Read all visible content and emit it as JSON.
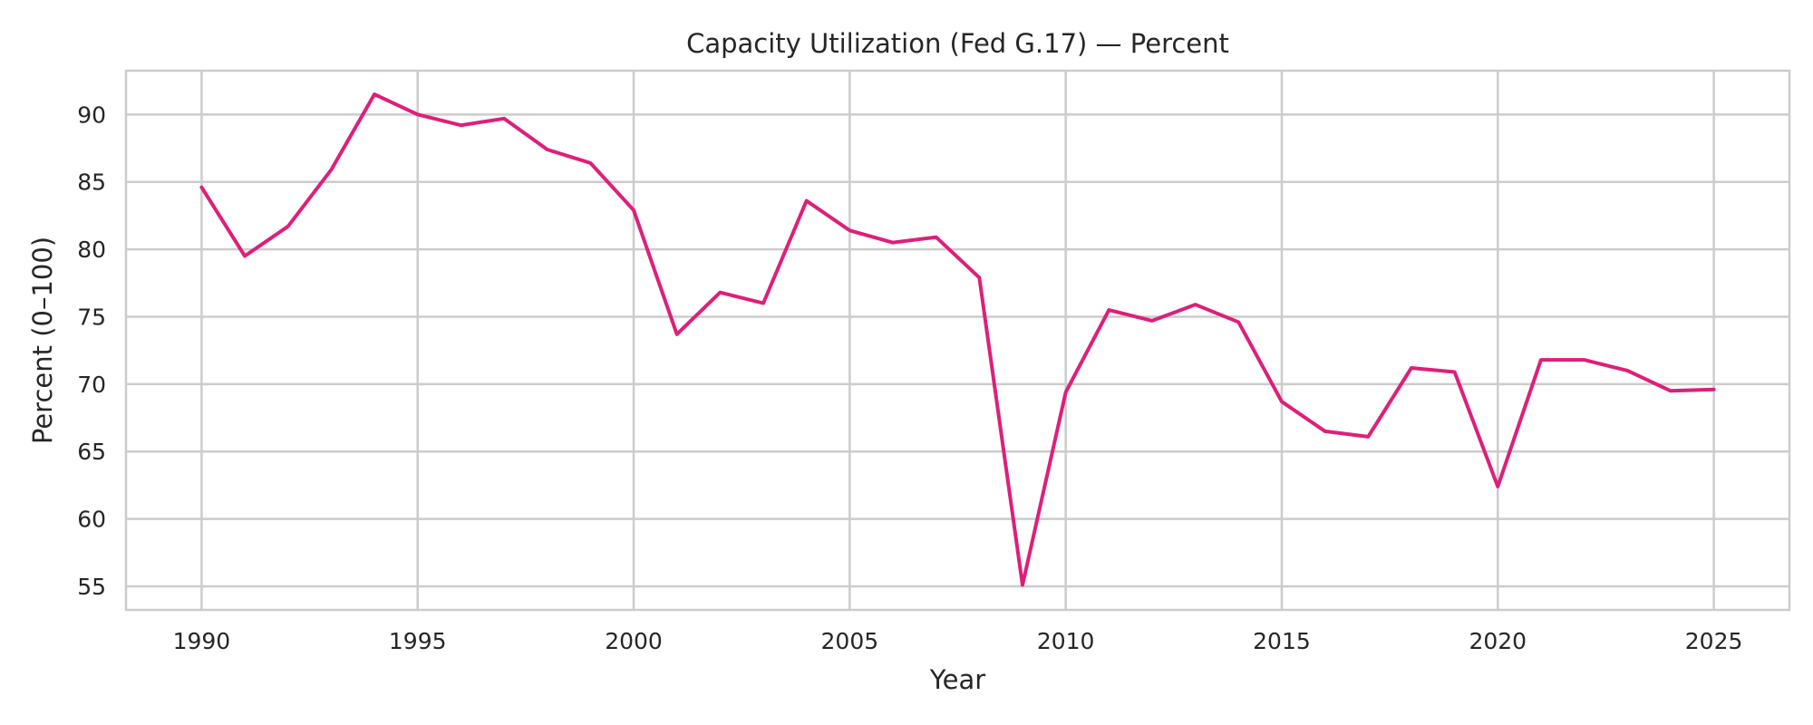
{
  "chart_data": {
    "type": "line",
    "title": "Capacity Utilization (Fed G.17) — Percent",
    "xlabel": "Year",
    "ylabel": "Percent (0–100)",
    "xlim": [
      1988.25,
      2026.75
    ],
    "ylim": [
      53.25,
      93.25
    ],
    "x_ticks": [
      1990,
      1995,
      2000,
      2005,
      2010,
      2015,
      2020,
      2025
    ],
    "y_ticks": [
      55,
      60,
      65,
      70,
      75,
      80,
      85,
      90
    ],
    "grid": true,
    "color": "#de1f7a",
    "x": [
      1990,
      1991,
      1992,
      1993,
      1994,
      1995,
      1996,
      1997,
      1998,
      1999,
      2000,
      2001,
      2002,
      2003,
      2004,
      2005,
      2006,
      2007,
      2008,
      2009,
      2010,
      2011,
      2012,
      2013,
      2014,
      2015,
      2016,
      2017,
      2018,
      2019,
      2020,
      2021,
      2022,
      2023,
      2024,
      2025
    ],
    "series": [
      {
        "values": [
          84.6,
          79.5,
          81.7,
          85.9,
          91.5,
          90.0,
          89.2,
          89.7,
          87.4,
          86.4,
          82.9,
          73.7,
          76.8,
          76.0,
          83.6,
          81.4,
          80.5,
          80.9,
          77.9,
          55.1,
          69.4,
          75.5,
          74.7,
          75.9,
          74.6,
          68.7,
          66.5,
          66.1,
          71.2,
          70.9,
          62.4,
          71.8,
          71.8,
          71.0,
          69.5,
          69.6
        ]
      }
    ]
  }
}
